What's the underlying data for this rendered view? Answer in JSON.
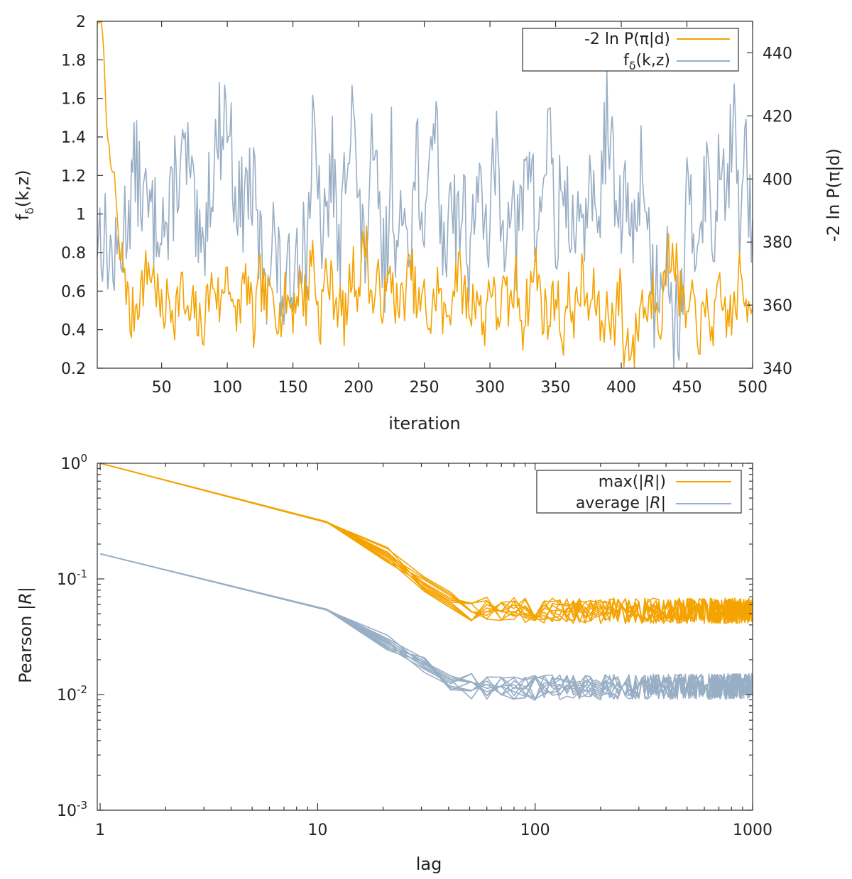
{
  "colors": {
    "orange": "#f5a300",
    "blue": "#98aec5",
    "axis": "#333333",
    "text": "#222222"
  },
  "chart_data": [
    {
      "type": "line",
      "xlabel": "iteration",
      "ylabel_left": {
        "main": "f",
        "sub": "δ",
        "args": "(k,z)"
      },
      "ylabel_right": "-2 ln P(π|d)",
      "xlim": [
        1,
        500
      ],
      "ylim_left": [
        0.2,
        2
      ],
      "ylim_right": [
        340,
        450
      ],
      "x_ticks": [
        "50",
        "100",
        "150",
        "200",
        "250",
        "300",
        "350",
        "400",
        "450",
        "500"
      ],
      "y_ticks_left": [
        "0.2",
        "0.4",
        "0.6",
        "0.8",
        "1",
        "1.2",
        "1.4",
        "1.6",
        "1.8",
        "2"
      ],
      "y_ticks_right": [
        "340",
        "360",
        "380",
        "400",
        "420",
        "440"
      ],
      "legend_position": "top-right",
      "series": [
        {
          "name": "-2 ln P(π|d)",
          "color": "#f5a300",
          "axis": "right",
          "anchors": [
            [
              1,
              450
            ],
            [
              5,
              448
            ],
            [
              8,
              420
            ],
            [
              11,
              403
            ],
            [
              14,
              402
            ],
            [
              18,
              375
            ],
            [
              22,
              372
            ],
            [
              26,
              354
            ],
            [
              30,
              360
            ],
            [
              35,
              366
            ],
            [
              40,
              372
            ],
            [
              45,
              368
            ],
            [
              50,
              356
            ],
            [
              55,
              362
            ],
            [
              60,
              358
            ],
            [
              65,
              366
            ],
            [
              70,
              354
            ],
            [
              75,
              359
            ],
            [
              80,
              351
            ],
            [
              85,
              362
            ],
            [
              90,
              368
            ],
            [
              95,
              358
            ],
            [
              100,
              375
            ],
            [
              105,
              353
            ],
            [
              110,
              362
            ],
            [
              115,
              368
            ],
            [
              120,
              352
            ],
            [
              125,
              368
            ],
            [
              130,
              360
            ],
            [
              135,
              365
            ],
            [
              140,
              356
            ],
            [
              145,
              363
            ],
            [
              150,
              359
            ],
            [
              155,
              367
            ],
            [
              160,
              361
            ],
            [
              165,
              378
            ],
            [
              170,
              353
            ],
            [
              175,
              370
            ],
            [
              180,
              365
            ],
            [
              185,
              360
            ],
            [
              190,
              355
            ],
            [
              195,
              372
            ],
            [
              200,
              365
            ],
            [
              205,
              383
            ],
            [
              210,
              360
            ],
            [
              215,
              366
            ],
            [
              220,
              361
            ],
            [
              225,
              370
            ],
            [
              230,
              357
            ],
            [
              235,
              364
            ],
            [
              240,
              372
            ],
            [
              245,
              358
            ],
            [
              250,
              362
            ],
            [
              255,
              353
            ],
            [
              260,
              368
            ],
            [
              265,
              354
            ],
            [
              270,
              361
            ],
            [
              275,
              372
            ],
            [
              280,
              364
            ],
            [
              285,
              358
            ],
            [
              290,
              366
            ],
            [
              295,
              351
            ],
            [
              300,
              370
            ],
            [
              305,
              356
            ],
            [
              310,
              363
            ],
            [
              315,
              359
            ],
            [
              320,
              368
            ],
            [
              325,
              354
            ],
            [
              330,
              364
            ],
            [
              335,
              373
            ],
            [
              340,
              359
            ],
            [
              345,
              355
            ],
            [
              350,
              366
            ],
            [
              355,
              350
            ],
            [
              360,
              362
            ],
            [
              365,
              357
            ],
            [
              370,
              368
            ],
            [
              375,
              358
            ],
            [
              380,
              364
            ],
            [
              385,
              352
            ],
            [
              390,
              360
            ],
            [
              395,
              354
            ],
            [
              400,
              368
            ],
            [
              402,
              342
            ],
            [
              405,
              350
            ],
            [
              410,
              346
            ],
            [
              415,
              362
            ],
            [
              420,
              358
            ],
            [
              425,
              366
            ],
            [
              430,
              356
            ],
            [
              435,
              374
            ],
            [
              440,
              378
            ],
            [
              445,
              362
            ],
            [
              450,
              355
            ],
            [
              455,
              360
            ],
            [
              460,
              351
            ],
            [
              465,
              358
            ],
            [
              470,
              354
            ],
            [
              475,
              362
            ],
            [
              480,
              357
            ],
            [
              485,
              356
            ],
            [
              490,
              368
            ],
            [
              495,
              360
            ],
            [
              500,
              365
            ]
          ]
        },
        {
          "name": "f",
          "name_sub": "δ",
          "name_args": "(k,z)",
          "color": "#98aec5",
          "axis": "left",
          "anchors": [
            [
              1,
              0.92
            ],
            [
              5,
              0.9
            ],
            [
              10,
              0.8
            ],
            [
              15,
              0.72
            ],
            [
              20,
              0.88
            ],
            [
              25,
              1.05
            ],
            [
              30,
              1.25
            ],
            [
              35,
              1.1
            ],
            [
              40,
              1.0
            ],
            [
              45,
              0.95
            ],
            [
              50,
              1.05
            ],
            [
              55,
              0.85
            ],
            [
              60,
              1.2
            ],
            [
              65,
              1.25
            ],
            [
              70,
              1.28
            ],
            [
              75,
              0.95
            ],
            [
              80,
              0.7
            ],
            [
              85,
              1.08
            ],
            [
              90,
              1.3
            ],
            [
              95,
              1.45
            ],
            [
              100,
              1.55
            ],
            [
              105,
              1.2
            ],
            [
              110,
              1.0
            ],
            [
              115,
              1.15
            ],
            [
              120,
              1.1
            ],
            [
              125,
              0.8
            ],
            [
              130,
              0.7
            ],
            [
              135,
              0.9
            ],
            [
              140,
              0.65
            ],
            [
              145,
              0.55
            ],
            [
              150,
              0.75
            ],
            [
              155,
              0.9
            ],
            [
              160,
              0.8
            ],
            [
              165,
              1.4
            ],
            [
              170,
              1.0
            ],
            [
              175,
              0.85
            ],
            [
              180,
              1.35
            ],
            [
              185,
              0.7
            ],
            [
              190,
              1.25
            ],
            [
              195,
              1.7
            ],
            [
              200,
              0.95
            ],
            [
              205,
              0.8
            ],
            [
              210,
              1.25
            ],
            [
              215,
              1.05
            ],
            [
              220,
              0.65
            ],
            [
              225,
              1.3
            ],
            [
              230,
              0.7
            ],
            [
              235,
              1.1
            ],
            [
              240,
              0.9
            ],
            [
              245,
              1.4
            ],
            [
              250,
              0.6
            ],
            [
              255,
              1.55
            ],
            [
              260,
              1.35
            ],
            [
              265,
              0.7
            ],
            [
              270,
              1.2
            ],
            [
              275,
              0.95
            ],
            [
              280,
              1.05
            ],
            [
              285,
              0.75
            ],
            [
              290,
              1.25
            ],
            [
              295,
              0.85
            ],
            [
              300,
              1.0
            ],
            [
              305,
              1.3
            ],
            [
              310,
              0.85
            ],
            [
              315,
              1.2
            ],
            [
              320,
              0.8
            ],
            [
              325,
              1.05
            ],
            [
              330,
              1.4
            ],
            [
              335,
              0.85
            ],
            [
              340,
              1.1
            ],
            [
              345,
              1.55
            ],
            [
              350,
              0.8
            ],
            [
              355,
              1.2
            ],
            [
              360,
              0.95
            ],
            [
              365,
              1.0
            ],
            [
              370,
              0.75
            ],
            [
              375,
              1.25
            ],
            [
              380,
              0.9
            ],
            [
              385,
              1.15
            ],
            [
              390,
              1.6
            ],
            [
              395,
              1.05
            ],
            [
              400,
              0.95
            ],
            [
              405,
              1.1
            ],
            [
              410,
              0.85
            ],
            [
              415,
              1.3
            ],
            [
              420,
              1.0
            ],
            [
              425,
              0.55
            ],
            [
              430,
              0.75
            ],
            [
              435,
              0.9
            ],
            [
              440,
              0.4
            ],
            [
              445,
              0.5
            ],
            [
              450,
              1.05
            ],
            [
              455,
              0.85
            ],
            [
              460,
              1.0
            ],
            [
              465,
              1.25
            ],
            [
              470,
              0.75
            ],
            [
              475,
              1.4
            ],
            [
              480,
              1.15
            ],
            [
              485,
              1.5
            ],
            [
              490,
              1.0
            ],
            [
              495,
              1.3
            ],
            [
              500,
              0.8
            ]
          ]
        }
      ]
    },
    {
      "type": "line",
      "xlabel": "lag",
      "ylabel": {
        "main": "Pearson |",
        "italic": "R",
        "tail": "|"
      },
      "xscale": "log",
      "yscale": "log",
      "xlim": [
        0.97,
        1000
      ],
      "ylim": [
        0.001,
        1
      ],
      "x_ticks": [
        1,
        10,
        100,
        1000
      ],
      "x_tick_labels": [
        "1",
        "10",
        "100",
        "1000"
      ],
      "y_ticks": [
        0.001,
        0.01,
        0.1,
        1
      ],
      "y_tick_labels": [
        {
          "base": "10",
          "exp": "-3"
        },
        {
          "base": "10",
          "exp": "-2"
        },
        {
          "base": "10",
          "exp": "-1"
        },
        {
          "base": "10",
          "exp": "0"
        }
      ],
      "legend_position": "top-right",
      "series": [
        {
          "name": {
            "pre": "max(|",
            "italic": "R",
            "post": "|)"
          },
          "color": "#f5a300",
          "curves": 10,
          "anchors": [
            [
              1,
              1.0
            ],
            [
              11,
              0.33
            ],
            [
              21,
              0.16
            ],
            [
              31,
              0.09
            ],
            [
              41,
              0.065
            ],
            [
              51,
              0.056
            ],
            [
              100,
              0.053
            ],
            [
              1000,
              0.053
            ]
          ]
        },
        {
          "name": {
            "pre": "average |",
            "italic": "R",
            "post": "|"
          },
          "color": "#98aec5",
          "curves": 10,
          "anchors": [
            [
              1,
              0.165
            ],
            [
              11,
              0.057
            ],
            [
              21,
              0.028
            ],
            [
              31,
              0.018
            ],
            [
              41,
              0.0125
            ],
            [
              51,
              0.0118
            ],
            [
              100,
              0.0115
            ],
            [
              1000,
              0.0118
            ]
          ]
        }
      ]
    }
  ]
}
